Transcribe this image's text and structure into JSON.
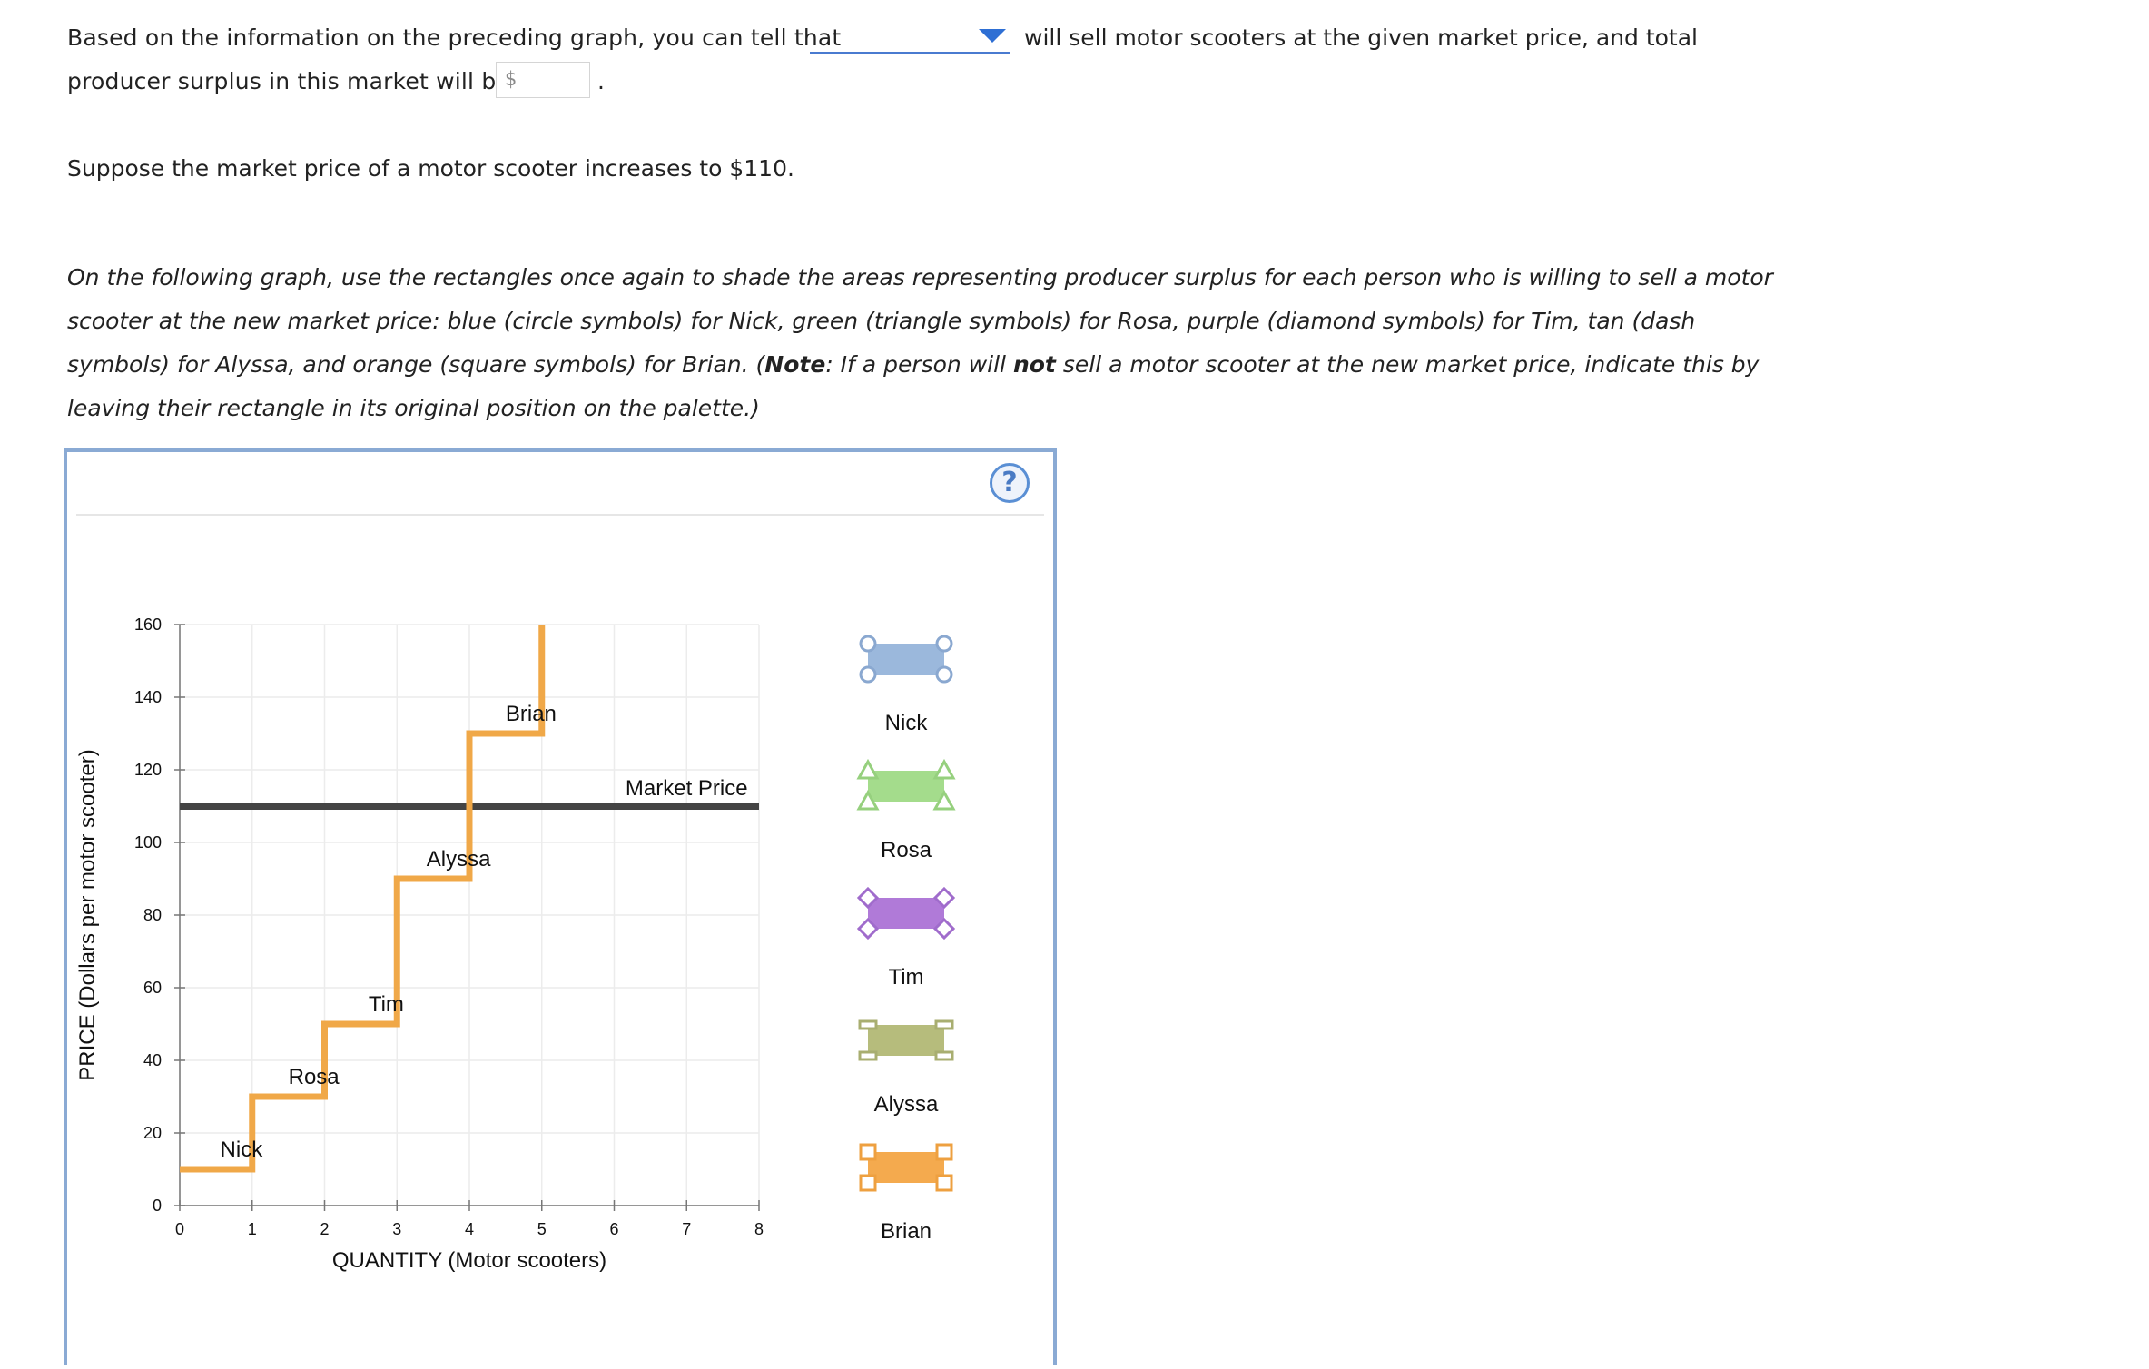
{
  "question": {
    "line1_start": "Based on the information on the preceding graph, you can tell that",
    "dropdown_value": "",
    "line1_end": "will sell motor scooters at the given market price, and total",
    "line2_start": "producer surplus in this market will be",
    "dollar_sign": "$",
    "surplus_value": "",
    "period": "."
  },
  "suppose_text": "Suppose the market price of a motor scooter increases to $110.",
  "instructions": {
    "part1": "On the following graph, use the rectangles once again to shade the areas representing producer surplus for each person who is willing to sell a motor scooter at the new market price: blue (circle symbols) for Nick, green (triangle symbols) for Rosa, purple (diamond symbols) for Tim, tan (dash symbols) for Alyssa, and orange (square symbols) for Brian. (",
    "note_label": "Note",
    "part2": ": If a person will ",
    "not_word": "not",
    "part3": " sell a motor scooter at the new market price, indicate this by leaving their rectangle in its original position on the palette.)"
  },
  "help_icon": "?",
  "chart_data": {
    "type": "line",
    "xlabel": "QUANTITY (Motor scooters)",
    "ylabel": "PRICE (Dollars per motor scooter)",
    "xlim": [
      0,
      8
    ],
    "ylim": [
      0,
      160
    ],
    "x_ticks": [
      0,
      1,
      2,
      3,
      4,
      5,
      6,
      7,
      8
    ],
    "y_ticks": [
      0,
      20,
      40,
      60,
      80,
      100,
      120,
      140,
      160
    ],
    "grid": true,
    "supply_step_color": "#f0a848",
    "market_price_color": "#444444",
    "sellers": [
      {
        "name": "Nick",
        "price": 10,
        "q_start": 0,
        "q_end": 1
      },
      {
        "name": "Rosa",
        "price": 30,
        "q_start": 1,
        "q_end": 2
      },
      {
        "name": "Tim",
        "price": 50,
        "q_start": 2,
        "q_end": 3
      },
      {
        "name": "Alyssa",
        "price": 90,
        "q_start": 3,
        "q_end": 4
      },
      {
        "name": "Brian",
        "price": 130,
        "q_start": 4,
        "q_end": 5
      }
    ],
    "supply_top_x": 5,
    "market_price": {
      "label": "Market Price",
      "value": 110
    }
  },
  "palette": [
    {
      "name": "Nick",
      "symbol": "circle",
      "fill": "#9bb8dc",
      "stroke": "#8aa8d0"
    },
    {
      "name": "Rosa",
      "symbol": "triangle",
      "fill": "#a4dc8c",
      "stroke": "#96d07e"
    },
    {
      "name": "Tim",
      "symbol": "diamond",
      "fill": "#b07ad8",
      "stroke": "#a06ccc"
    },
    {
      "name": "Alyssa",
      "symbol": "dash",
      "fill": "#b6bc7c",
      "stroke": "#a8ae70"
    },
    {
      "name": "Brian",
      "symbol": "square",
      "fill": "#f4aa4e",
      "stroke": "#eea040"
    }
  ]
}
